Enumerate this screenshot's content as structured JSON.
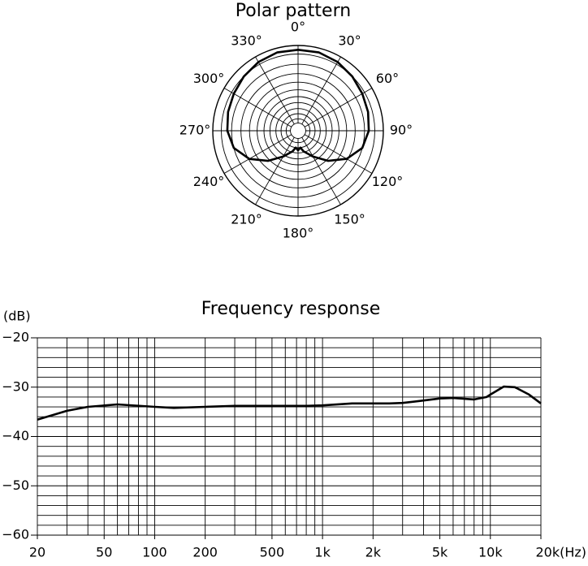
{
  "chart_data": [
    {
      "type": "polar",
      "title": "Polar pattern",
      "angle_ticks": [
        {
          "value": 0,
          "label": "0°"
        },
        {
          "value": 30,
          "label": "30°"
        },
        {
          "value": 60,
          "label": "60°"
        },
        {
          "value": 90,
          "label": "90°"
        },
        {
          "value": 120,
          "label": "120°"
        },
        {
          "value": 150,
          "label": "150°"
        },
        {
          "value": 180,
          "label": "180°"
        },
        {
          "value": 210,
          "label": "210°"
        },
        {
          "value": 240,
          "label": "240°"
        },
        {
          "value": 270,
          "label": "270°"
        },
        {
          "value": 300,
          "label": "300°"
        },
        {
          "value": 330,
          "label": "330°"
        }
      ],
      "rlim": [
        0,
        1
      ],
      "rgrid": [
        0.09,
        0.14,
        0.2,
        0.26,
        0.33,
        0.4,
        0.48,
        0.57,
        0.67,
        0.78,
        0.9,
        1
      ],
      "theta": [
        0,
        15,
        30,
        45,
        60,
        75,
        90,
        105,
        120,
        135,
        150,
        165,
        172,
        180,
        188,
        195,
        210,
        225,
        240,
        255,
        270,
        285,
        300,
        315,
        330,
        345,
        360
      ],
      "values": [
        0.95,
        0.95,
        0.93,
        0.9,
        0.87,
        0.85,
        0.83,
        0.78,
        0.66,
        0.5,
        0.35,
        0.25,
        0.2,
        0.23,
        0.2,
        0.25,
        0.35,
        0.5,
        0.66,
        0.78,
        0.83,
        0.85,
        0.87,
        0.9,
        0.93,
        0.95,
        0.95
      ],
      "color": "#000000"
    },
    {
      "type": "line",
      "title": "Frequency response",
      "y_label": "(dB)",
      "xscale": "log",
      "x": [
        20,
        30,
        40,
        60,
        100,
        130,
        200,
        300,
        500,
        800,
        1000,
        1500,
        2500,
        3000,
        4000,
        5000,
        6000,
        8000,
        9500,
        10000,
        12000,
        14000,
        17000,
        20000
      ],
      "values": [
        -36.6,
        -34.8,
        -34,
        -33.5,
        -34,
        -34.2,
        -34,
        -33.8,
        -33.8,
        -33.8,
        -33.7,
        -33.3,
        -33.3,
        -33.2,
        -32.7,
        -32.3,
        -32.2,
        -32.5,
        -32,
        -31.5,
        -29.9,
        -30,
        -31.5,
        -33.3
      ],
      "color": "#000000",
      "xlim": [
        20,
        20000
      ],
      "xticks": [
        20,
        50,
        100,
        200,
        500,
        {
          "value": 1000,
          "label": "1k"
        },
        {
          "value": 2000,
          "label": "2k"
        },
        {
          "value": 5000,
          "label": "5k"
        },
        {
          "value": 10000,
          "label": "10k"
        },
        {
          "value": 20000,
          "label": "20k(Hz)"
        }
      ],
      "xgrid": [
        20,
        30,
        40,
        50,
        60,
        70,
        80,
        90,
        100,
        200,
        300,
        400,
        500,
        600,
        700,
        800,
        900,
        1000,
        2000,
        3000,
        4000,
        5000,
        6000,
        7000,
        8000,
        9000,
        10000,
        20000
      ],
      "ylim": [
        -60,
        -20
      ],
      "yticks": [
        {
          "value": -20,
          "label": "−20"
        },
        {
          "value": -30,
          "label": "−30"
        },
        {
          "value": -40,
          "label": "−40"
        },
        {
          "value": -50,
          "label": "−50"
        },
        {
          "value": -60,
          "label": "−60"
        }
      ],
      "ygrid": [
        -60,
        -58,
        -56,
        -54,
        -52,
        -50,
        -48,
        -46,
        -44,
        -42,
        -40,
        -38,
        -36,
        -34,
        -32,
        -30,
        -28,
        -26,
        -24,
        -22,
        -20
      ]
    }
  ]
}
